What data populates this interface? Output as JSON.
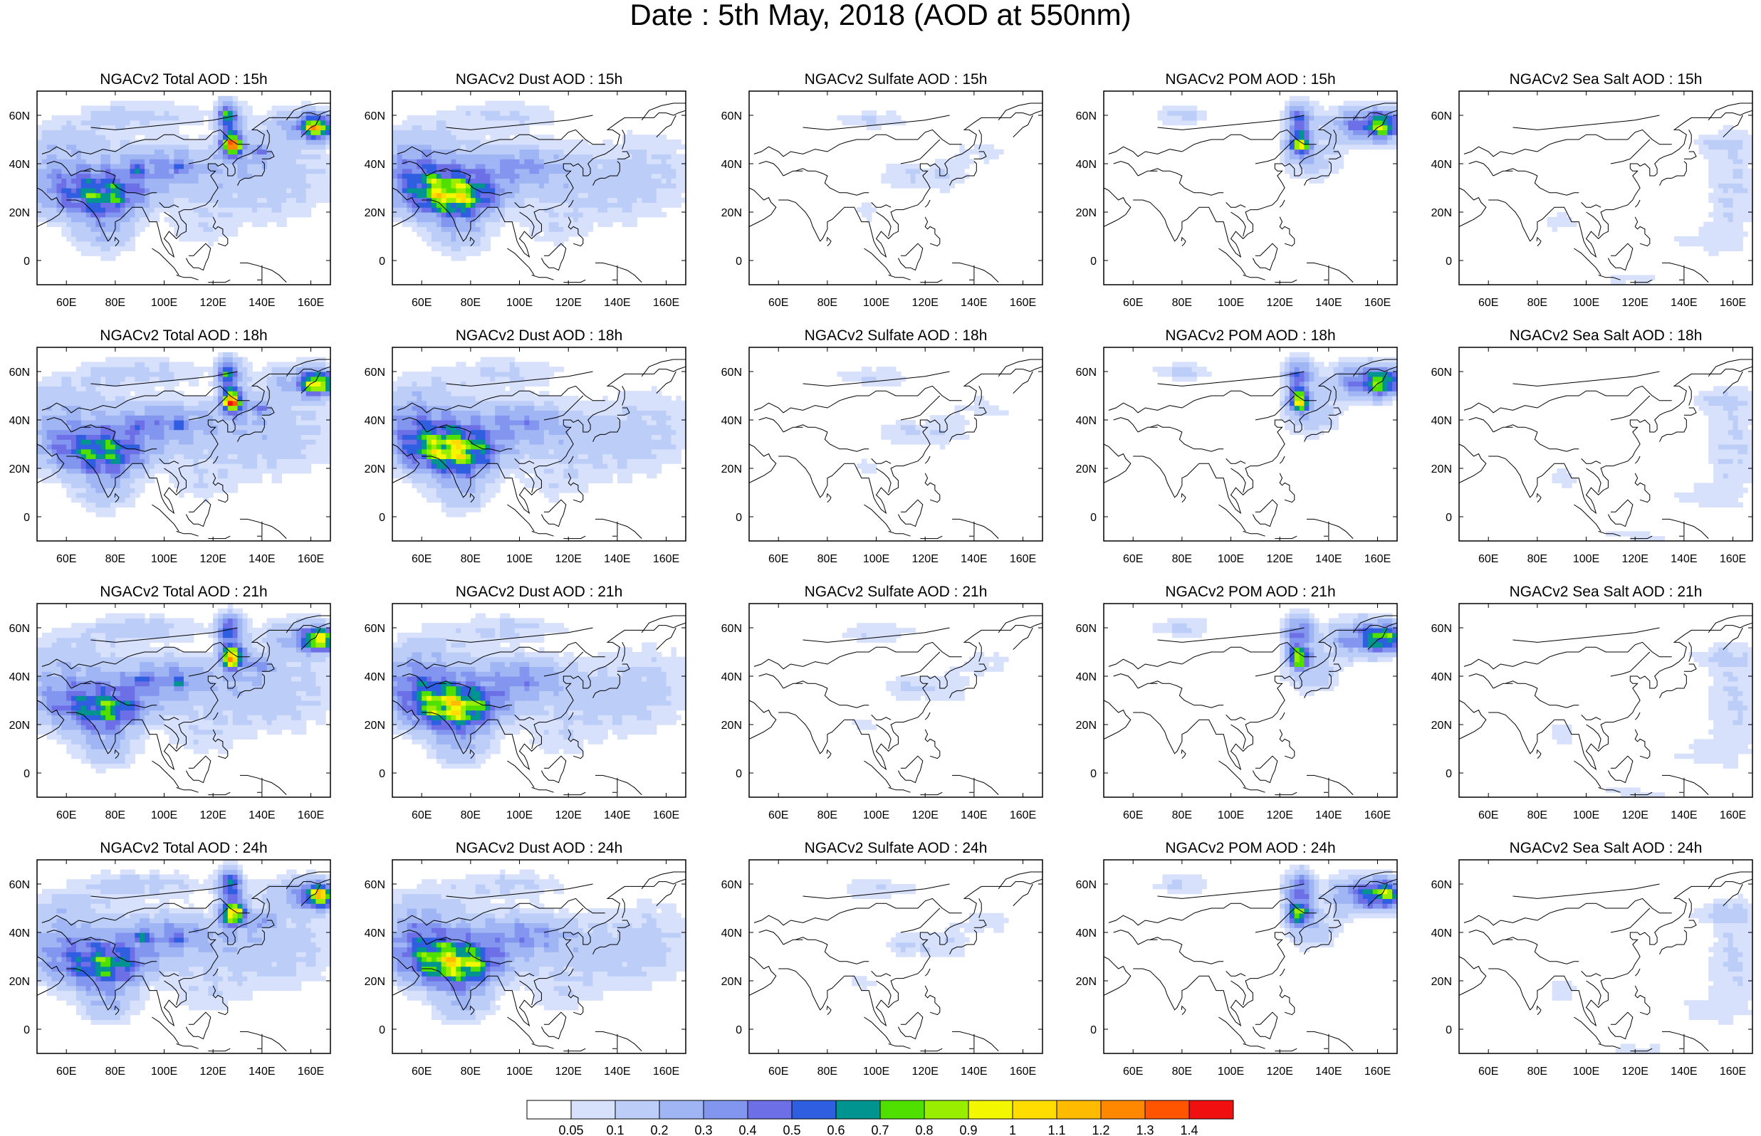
{
  "figure": {
    "title": "Date : 5th May, 2018 (AOD at 550nm)"
  },
  "maps": {
    "columns": [
      "Total",
      "Dust",
      "Sulfate",
      "POM",
      "Sea Salt"
    ],
    "rows": [
      "15h",
      "18h",
      "21h",
      "24h"
    ],
    "panel_titles": [
      [
        "NGACv2 Total AOD : 15h",
        "NGACv2 Dust AOD : 15h",
        "NGACv2 Sulfate AOD : 15h",
        "NGACv2 POM AOD : 15h",
        "NGACv2 Sea Salt AOD : 15h"
      ],
      [
        "NGACv2 Total AOD : 18h",
        "NGACv2 Dust AOD : 18h",
        "NGACv2 Sulfate AOD : 18h",
        "NGACv2 POM AOD : 18h",
        "NGACv2 Sea Salt AOD : 18h"
      ],
      [
        "NGACv2 Total AOD : 21h",
        "NGACv2 Dust AOD : 21h",
        "NGACv2 Sulfate AOD : 21h",
        "NGACv2 POM AOD : 21h",
        "NGACv2 Sea Salt AOD : 21h"
      ],
      [
        "NGACv2 Total AOD : 24h",
        "NGACv2 Dust AOD : 24h",
        "NGACv2 Sulfate AOD : 24h",
        "NGACv2 POM AOD : 24h",
        "NGACv2 Sea Salt  AOD : 24h"
      ]
    ],
    "lon_range": [
      48,
      168
    ],
    "lat_range": [
      -10,
      70
    ],
    "lon_ticks": [
      60,
      80,
      100,
      120,
      140,
      160
    ],
    "lon_tick_labels": [
      "60E",
      "80E",
      "100E",
      "120E",
      "140E",
      "160E"
    ],
    "lat_ticks": [
      0,
      20,
      40,
      60
    ],
    "lat_tick_labels": [
      "0",
      "20N",
      "40N",
      "60N"
    ],
    "land_outline_color": "#000000"
  },
  "colorbar": {
    "labels": [
      "0.05",
      "0.1",
      "0.2",
      "0.3",
      "0.4",
      "0.5",
      "0.6",
      "0.7",
      "0.8",
      "0.9",
      "1",
      "1.1",
      "1.2",
      "1.3",
      "1.4"
    ],
    "colors": [
      "#ffffff",
      "#d8e1fb",
      "#bccdf8",
      "#a0b5f4",
      "#8396ef",
      "#6c6fe6",
      "#2f5fe0",
      "#009490",
      "#4fe000",
      "#99ee00",
      "#f3f800",
      "#ffdd00",
      "#ffbb00",
      "#ff8800",
      "#ff5500",
      "#f01010"
    ]
  }
}
